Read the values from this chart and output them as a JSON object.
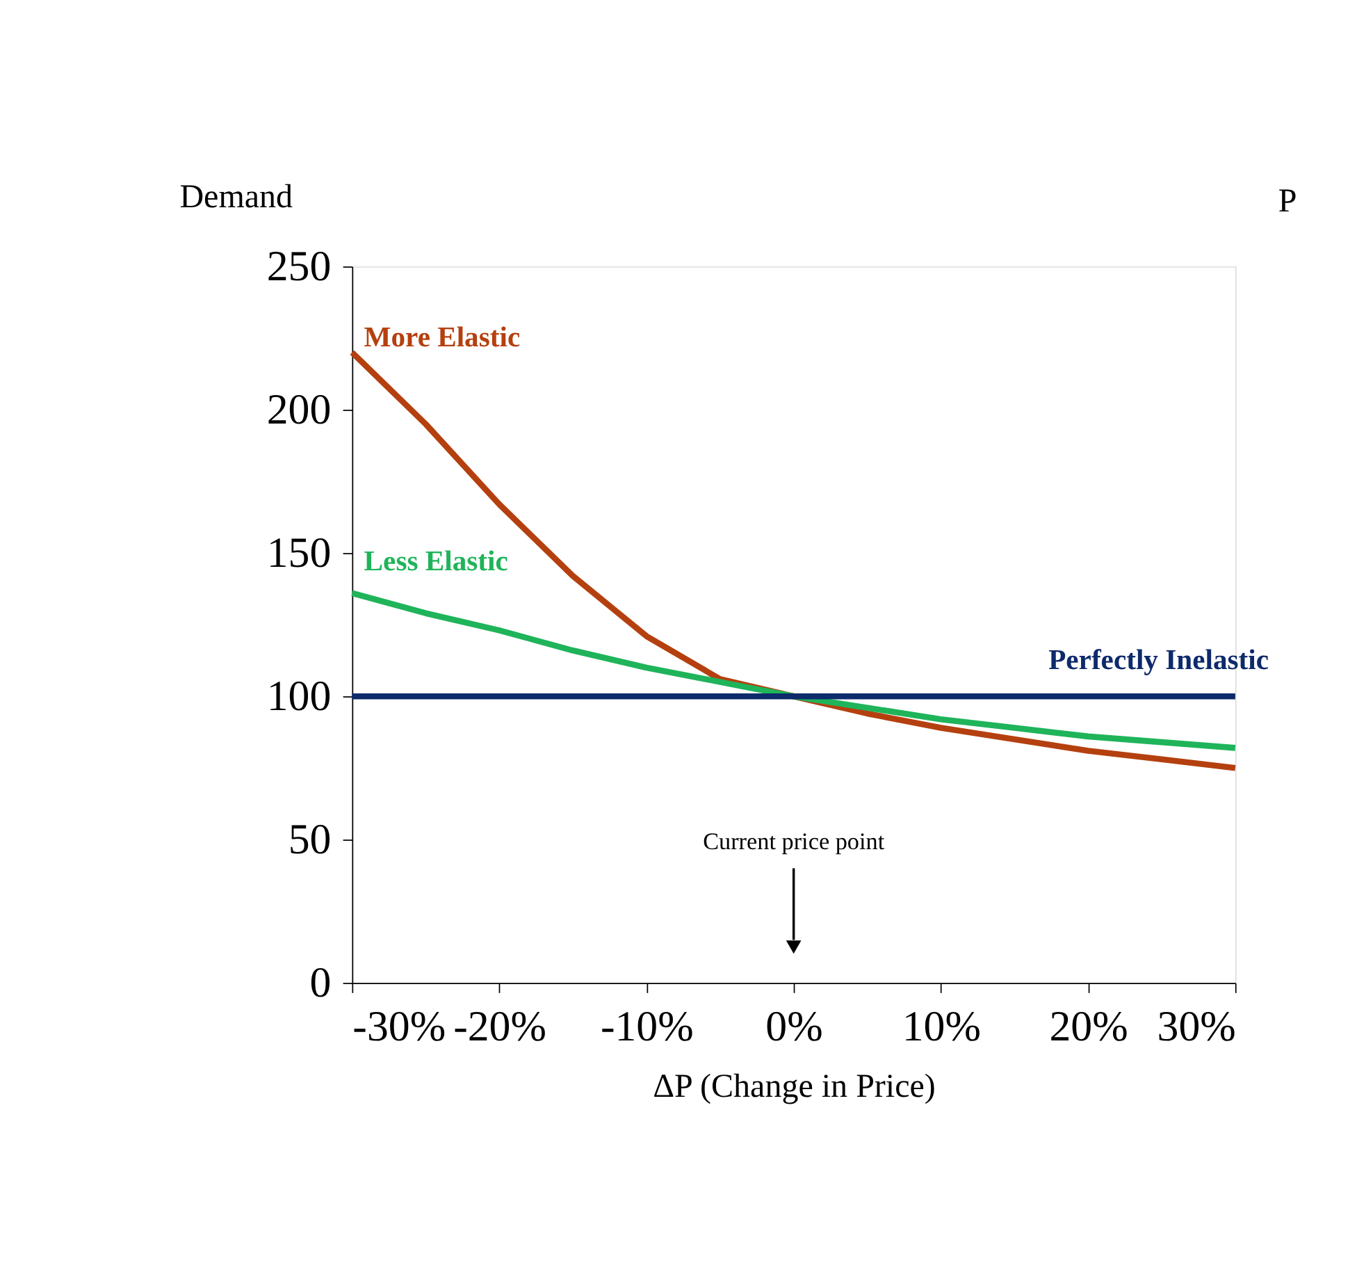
{
  "chart_data": {
    "type": "line",
    "ylabel": "Demand",
    "xlabel": "ΔP (Change in Price)",
    "x": [
      -30,
      -25,
      -20,
      -15,
      -10,
      -5,
      0,
      5,
      10,
      15,
      20,
      25,
      30
    ],
    "series": [
      {
        "name": "More Elastic",
        "color": "#b5400f",
        "values": [
          220,
          195,
          167,
          142,
          121,
          106,
          100,
          94,
          89,
          85,
          81,
          78,
          75
        ]
      },
      {
        "name": "Less Elastic",
        "color": "#1fb45a",
        "values": [
          136,
          129,
          123,
          116,
          110,
          105,
          100,
          96,
          92,
          89,
          86,
          84,
          82
        ]
      },
      {
        "name": "Perfectly Inelastic",
        "color": "#0d2a6b",
        "values": [
          100,
          100,
          100,
          100,
          100,
          100,
          100,
          100,
          100,
          100,
          100,
          100,
          100
        ]
      }
    ],
    "xlim": [
      -30,
      30
    ],
    "ylim": [
      0,
      250
    ],
    "xticks": [
      {
        "value": -30,
        "label": "-30%"
      },
      {
        "value": -20,
        "label": "-20%"
      },
      {
        "value": -10,
        "label": "-10%"
      },
      {
        "value": 0,
        "label": "0%"
      },
      {
        "value": 10,
        "label": "10%"
      },
      {
        "value": 20,
        "label": "20%"
      },
      {
        "value": 30,
        "label": "30%"
      }
    ],
    "yticks": [
      0,
      50,
      100,
      150,
      200,
      250
    ],
    "annotations": [
      "Current price point",
      "P"
    ],
    "grid": false,
    "legend": false,
    "marker": "none",
    "line_style": "solid"
  }
}
